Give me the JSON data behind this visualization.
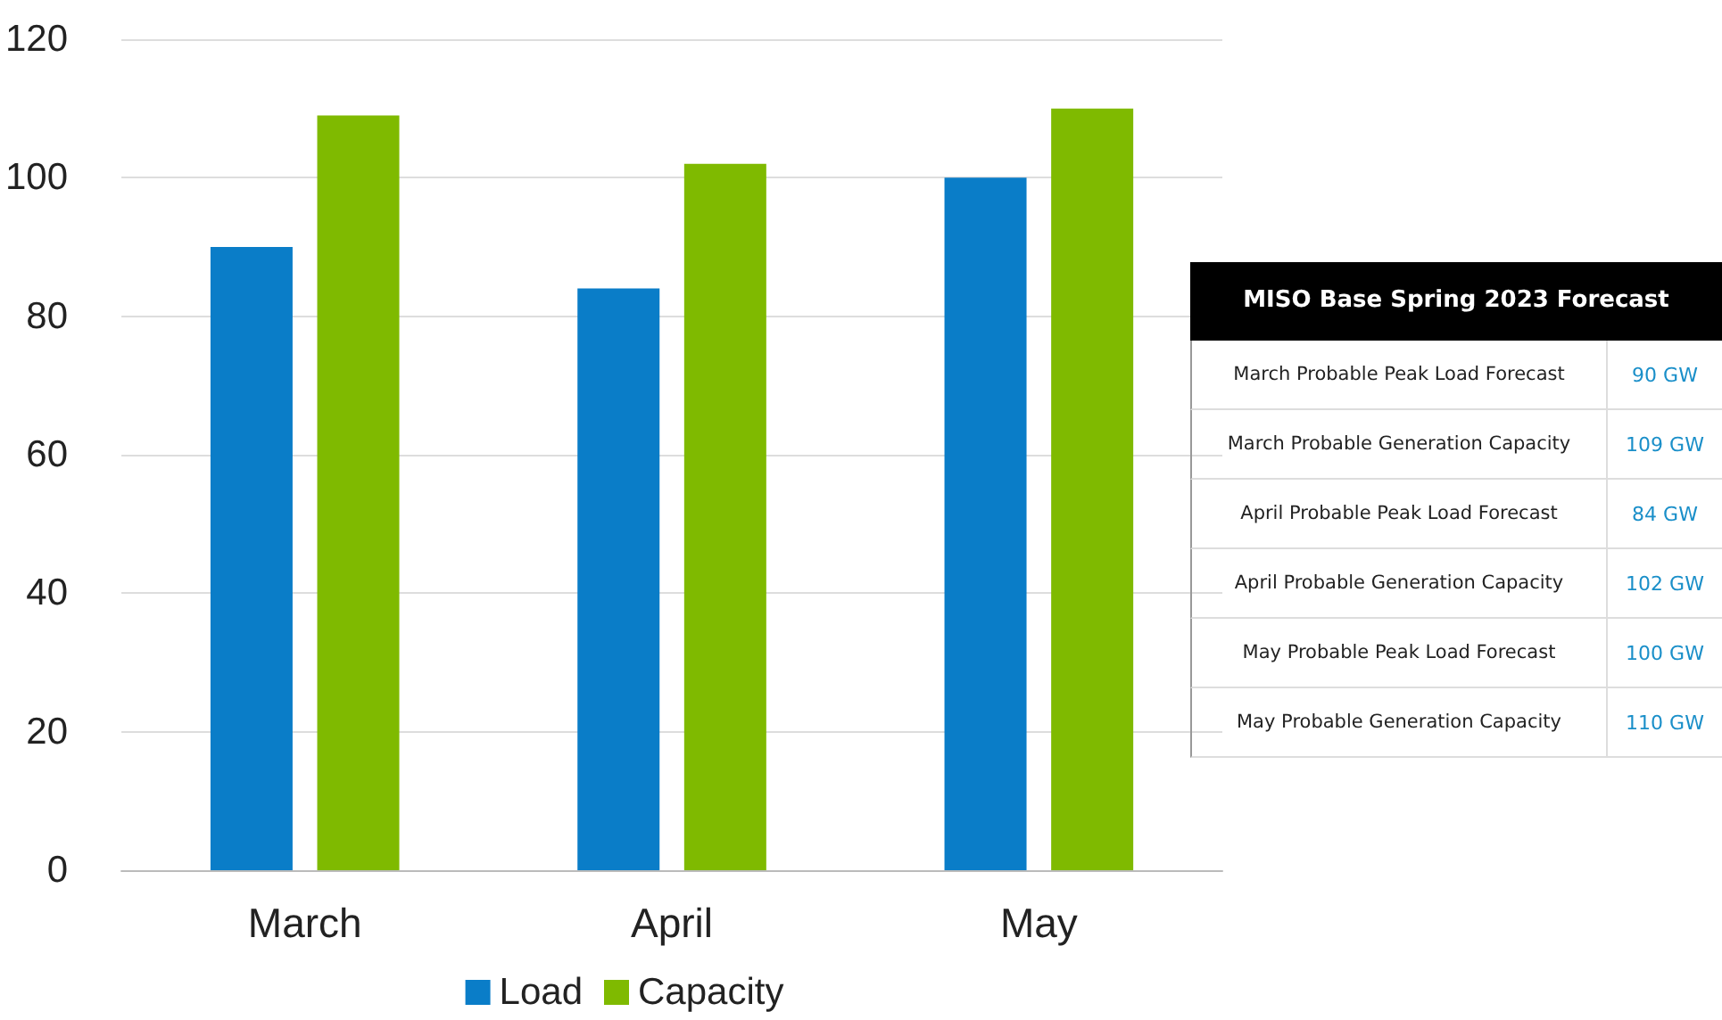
{
  "chart_data": [
    {
      "type": "bar",
      "categories": [
        "March",
        "April",
        "May"
      ],
      "series": [
        {
          "name": "Load",
          "color": "#0a7dc8",
          "values": [
            90,
            84,
            100
          ]
        },
        {
          "name": "Capacity",
          "color": "#7fba00",
          "values": [
            109,
            102,
            110
          ]
        }
      ],
      "ylim": [
        0,
        120
      ],
      "yticks": [
        0,
        20,
        40,
        60,
        80,
        100,
        120
      ],
      "grid": "y",
      "legend": "bottom"
    },
    {
      "type": "other",
      "title": "MISO Base Spring 2023 Forecast",
      "annotations": [
        "March Probable Peak Load Forecast",
        "90 GW",
        "March Probable Generation Capacity",
        "109 GW",
        "April Probable Peak Load Forecast",
        "84 GW",
        "April Probable Generation Capacity",
        "102 GW",
        "May Probable Peak Load Forecast",
        "100 GW",
        "May Probable Generation Capacity",
        "110 GW"
      ]
    }
  ]
}
